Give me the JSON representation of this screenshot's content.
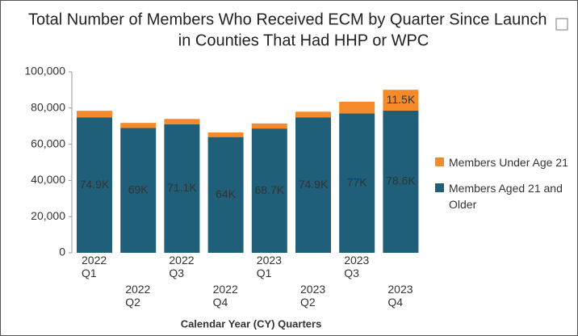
{
  "chart_data": {
    "type": "stacked_bar",
    "title_lines": [
      "Total Number of Members Who Received ECM by Quarter Since Launch",
      "in Counties That Had HHP or WPC"
    ],
    "x_label": "Calendar Year (CY) Quarters",
    "categories": [
      "2022 Q1",
      "2022 Q2",
      "2022 Q3",
      "2022 Q4",
      "2023 Q1",
      "2023 Q2",
      "2023 Q3",
      "2023 Q4"
    ],
    "series": [
      {
        "name": "Members Aged 21 and Older",
        "color": "#1f5f7a",
        "values": [
          74900,
          69000,
          71100,
          64000,
          68700,
          74900,
          77000,
          78600
        ],
        "value_labels": [
          "74.9K",
          "69K",
          "71.1K",
          "64K",
          "68.7K",
          "74.9K",
          "77K",
          "78.6K"
        ]
      },
      {
        "name": "Members Under Age 21",
        "color": "#f58a2a",
        "values": [
          3600,
          2800,
          2900,
          2500,
          2800,
          3100,
          6500,
          11500
        ],
        "value_labels": [
          null,
          null,
          null,
          null,
          null,
          null,
          null,
          "11.5K"
        ]
      }
    ],
    "ylim": [
      0,
      100000
    ],
    "yticks": [
      0,
      {
        "value": 20000,
        "label": "20,000"
      },
      {
        "value": 40000,
        "label": "40,000"
      },
      {
        "value": 60000,
        "label": "60,000"
      },
      {
        "value": 80000,
        "label": "80,000"
      },
      {
        "value": 100000,
        "label": "100,000"
      }
    ]
  }
}
